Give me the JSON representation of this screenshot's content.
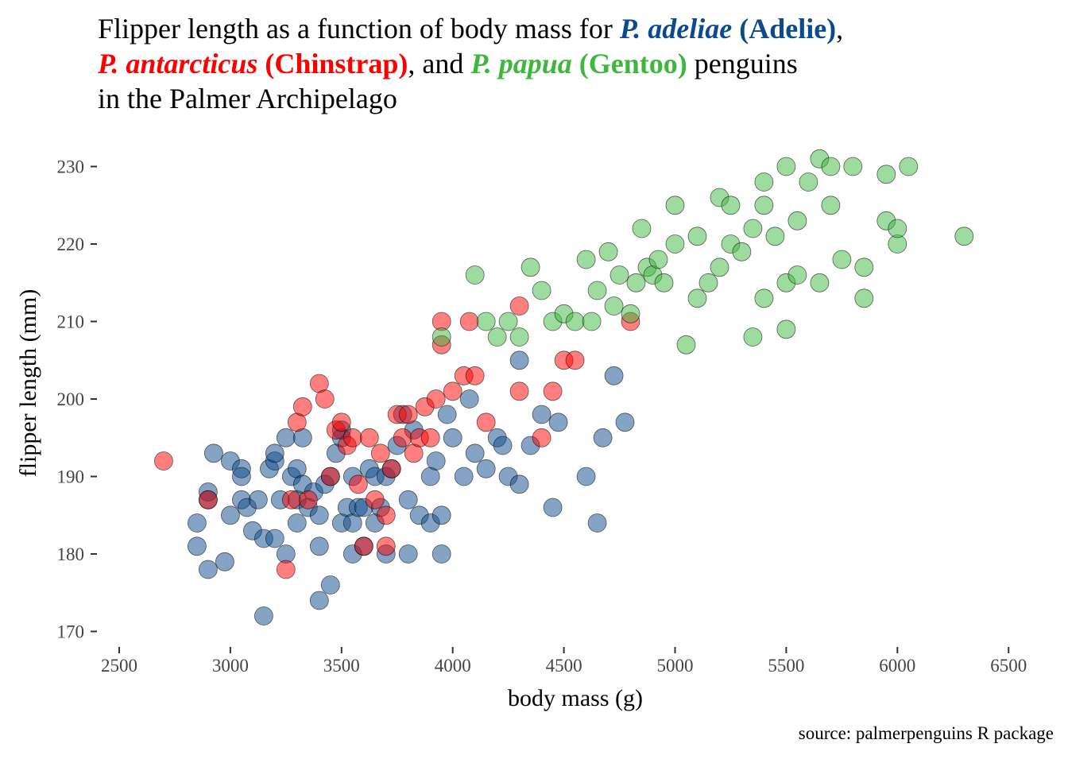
{
  "title": {
    "line1_text": "Flipper length as a function of body mass for",
    "adelie_species": "P. adeliae",
    "adelie_common": "(Adelie)",
    "comma1": ",",
    "chinstrap_species": "P. antarcticus",
    "chinstrap_common": "(Chinstrap)",
    "and_text": ", and",
    "gentoo_species": "P. papua",
    "gentoo_common": "(Gentoo)",
    "penguins_text": "penguins",
    "line3_text": "in the Palmer Archipelago"
  },
  "caption": "source: palmerpenguins R package",
  "colors": {
    "adelie": "#0b4a8c",
    "chinstrap": "#ff0000",
    "gentoo": "#3db83d"
  },
  "chart_data": {
    "type": "scatter",
    "xlabel": "body mass (g)",
    "ylabel": "flipper length (mm)",
    "xlim": [
      2400,
      6560
    ],
    "ylim": [
      168,
      232
    ],
    "xticks": [
      2500,
      3000,
      3500,
      4000,
      4500,
      5000,
      5500,
      6000,
      6500
    ],
    "yticks": [
      170,
      180,
      190,
      200,
      210,
      220,
      230
    ],
    "grid": false,
    "legend": "none",
    "series": [
      {
        "key": "adelie",
        "points": [
          [
            2850,
            184
          ],
          [
            2850,
            181
          ],
          [
            2900,
            187
          ],
          [
            2900,
            188
          ],
          [
            2900,
            178
          ],
          [
            2925,
            193
          ],
          [
            2975,
            179
          ],
          [
            3000,
            185
          ],
          [
            3000,
            192
          ],
          [
            3050,
            191
          ],
          [
            3050,
            187
          ],
          [
            3050,
            190
          ],
          [
            3075,
            186
          ],
          [
            3100,
            183
          ],
          [
            3125,
            187
          ],
          [
            3150,
            182
          ],
          [
            3150,
            172
          ],
          [
            3175,
            191
          ],
          [
            3200,
            192
          ],
          [
            3200,
            182
          ],
          [
            3200,
            193
          ],
          [
            3225,
            187
          ],
          [
            3250,
            180
          ],
          [
            3250,
            195
          ],
          [
            3275,
            190
          ],
          [
            3300,
            184
          ],
          [
            3300,
            191
          ],
          [
            3300,
            187
          ],
          [
            3325,
            189
          ],
          [
            3325,
            195
          ],
          [
            3350,
            186
          ],
          [
            3375,
            188
          ],
          [
            3400,
            181
          ],
          [
            3400,
            185
          ],
          [
            3400,
            174
          ],
          [
            3425,
            189
          ],
          [
            3450,
            176
          ],
          [
            3450,
            190
          ],
          [
            3475,
            193
          ],
          [
            3500,
            184
          ],
          [
            3500,
            195
          ],
          [
            3500,
            196
          ],
          [
            3525,
            186
          ],
          [
            3550,
            190
          ],
          [
            3550,
            180
          ],
          [
            3550,
            184
          ],
          [
            3575,
            186
          ],
          [
            3600,
            181
          ],
          [
            3600,
            186
          ],
          [
            3625,
            191
          ],
          [
            3650,
            184
          ],
          [
            3650,
            190
          ],
          [
            3675,
            186
          ],
          [
            3700,
            190
          ],
          [
            3700,
            180
          ],
          [
            3725,
            191
          ],
          [
            3750,
            194
          ],
          [
            3775,
            198
          ],
          [
            3800,
            187
          ],
          [
            3800,
            180
          ],
          [
            3825,
            196
          ],
          [
            3850,
            185
          ],
          [
            3900,
            184
          ],
          [
            3900,
            190
          ],
          [
            3925,
            192
          ],
          [
            3950,
            185
          ],
          [
            3950,
            180
          ],
          [
            3975,
            198
          ],
          [
            4000,
            195
          ],
          [
            4050,
            190
          ],
          [
            4075,
            200
          ],
          [
            4100,
            193
          ],
          [
            4150,
            191
          ],
          [
            4200,
            195
          ],
          [
            4225,
            194
          ],
          [
            4250,
            190
          ],
          [
            4300,
            189
          ],
          [
            4300,
            205
          ],
          [
            4350,
            194
          ],
          [
            4400,
            198
          ],
          [
            4450,
            186
          ],
          [
            4475,
            197
          ],
          [
            4600,
            190
          ],
          [
            4650,
            184
          ],
          [
            4675,
            195
          ],
          [
            4725,
            203
          ],
          [
            4775,
            197
          ]
        ]
      },
      {
        "key": "chinstrap",
        "points": [
          [
            2700,
            192
          ],
          [
            2900,
            187
          ],
          [
            3250,
            178
          ],
          [
            3275,
            187
          ],
          [
            3300,
            197
          ],
          [
            3325,
            199
          ],
          [
            3350,
            187
          ],
          [
            3400,
            202
          ],
          [
            3425,
            200
          ],
          [
            3450,
            190
          ],
          [
            3475,
            196
          ],
          [
            3500,
            197
          ],
          [
            3525,
            194
          ],
          [
            3550,
            195
          ],
          [
            3575,
            189
          ],
          [
            3600,
            181
          ],
          [
            3625,
            195
          ],
          [
            3650,
            187
          ],
          [
            3675,
            193
          ],
          [
            3700,
            185
          ],
          [
            3700,
            181
          ],
          [
            3725,
            191
          ],
          [
            3750,
            198
          ],
          [
            3775,
            195
          ],
          [
            3800,
            198
          ],
          [
            3825,
            193
          ],
          [
            3850,
            195
          ],
          [
            3875,
            199
          ],
          [
            3900,
            195
          ],
          [
            3925,
            200
          ],
          [
            3950,
            207
          ],
          [
            3950,
            210
          ],
          [
            4000,
            201
          ],
          [
            4050,
            203
          ],
          [
            4075,
            210
          ],
          [
            4100,
            203
          ],
          [
            4150,
            197
          ],
          [
            4300,
            201
          ],
          [
            4300,
            212
          ],
          [
            4400,
            195
          ],
          [
            4450,
            201
          ],
          [
            4500,
            205
          ],
          [
            4550,
            205
          ],
          [
            4800,
            210
          ]
        ]
      },
      {
        "key": "gentoo",
        "points": [
          [
            3950,
            208
          ],
          [
            4100,
            216
          ],
          [
            4150,
            210
          ],
          [
            4200,
            208
          ],
          [
            4250,
            210
          ],
          [
            4300,
            208
          ],
          [
            4350,
            217
          ],
          [
            4400,
            214
          ],
          [
            4450,
            210
          ],
          [
            4500,
            211
          ],
          [
            4550,
            210
          ],
          [
            4600,
            218
          ],
          [
            4625,
            210
          ],
          [
            4650,
            214
          ],
          [
            4700,
            219
          ],
          [
            4725,
            212
          ],
          [
            4750,
            216
          ],
          [
            4800,
            211
          ],
          [
            4825,
            215
          ],
          [
            4850,
            222
          ],
          [
            4875,
            217
          ],
          [
            4900,
            216
          ],
          [
            4925,
            218
          ],
          [
            4950,
            215
          ],
          [
            5000,
            225
          ],
          [
            5000,
            220
          ],
          [
            5050,
            207
          ],
          [
            5100,
            213
          ],
          [
            5100,
            221
          ],
          [
            5150,
            215
          ],
          [
            5200,
            226
          ],
          [
            5200,
            217
          ],
          [
            5250,
            225
          ],
          [
            5250,
            220
          ],
          [
            5300,
            219
          ],
          [
            5350,
            208
          ],
          [
            5350,
            222
          ],
          [
            5400,
            213
          ],
          [
            5400,
            225
          ],
          [
            5400,
            228
          ],
          [
            5450,
            221
          ],
          [
            5500,
            209
          ],
          [
            5500,
            215
          ],
          [
            5500,
            230
          ],
          [
            5550,
            223
          ],
          [
            5550,
            216
          ],
          [
            5600,
            228
          ],
          [
            5650,
            231
          ],
          [
            5650,
            215
          ],
          [
            5700,
            230
          ],
          [
            5700,
            225
          ],
          [
            5750,
            218
          ],
          [
            5800,
            230
          ],
          [
            5850,
            217
          ],
          [
            5850,
            213
          ],
          [
            5950,
            229
          ],
          [
            5950,
            223
          ],
          [
            6000,
            220
          ],
          [
            6000,
            222
          ],
          [
            6050,
            230
          ],
          [
            6300,
            221
          ]
        ]
      }
    ]
  }
}
